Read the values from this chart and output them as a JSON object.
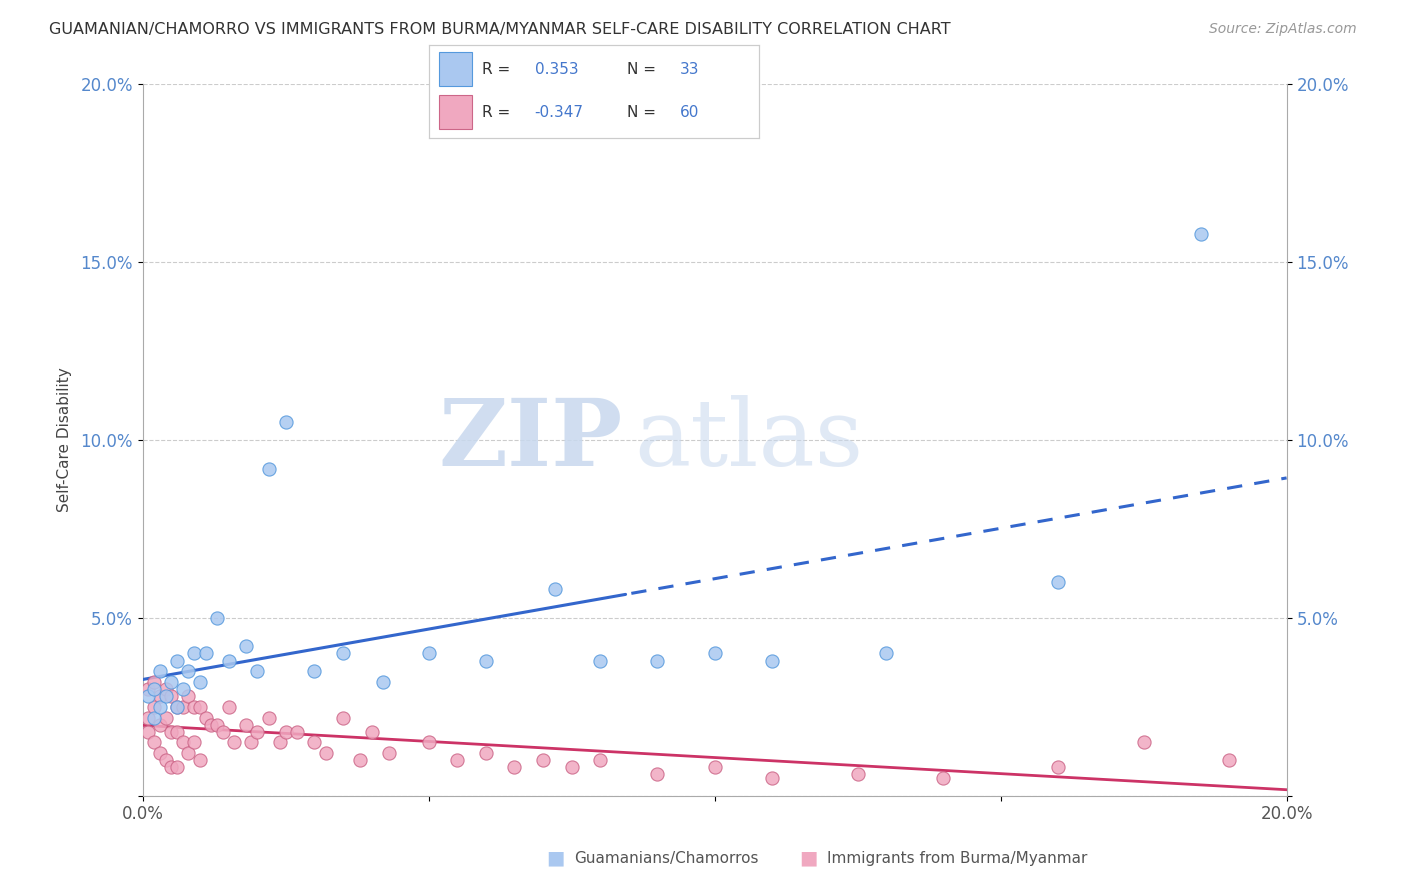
{
  "title": "GUAMANIAN/CHAMORRO VS IMMIGRANTS FROM BURMA/MYANMAR SELF-CARE DISABILITY CORRELATION CHART",
  "source": "Source: ZipAtlas.com",
  "ylabel": "Self-Care Disability",
  "xlim": [
    0.0,
    0.2
  ],
  "ylim": [
    0.0,
    0.2
  ],
  "x_ticks": [
    0.0,
    0.05,
    0.1,
    0.15,
    0.2
  ],
  "y_ticks": [
    0.0,
    0.05,
    0.1,
    0.15,
    0.2
  ],
  "series1": {
    "label": "Guamanians/Chamorros",
    "R": 0.353,
    "N": 33,
    "color": "#aac8f0",
    "edge_color": "#5599dd",
    "line_color": "#3366cc",
    "x": [
      0.001,
      0.002,
      0.002,
      0.003,
      0.003,
      0.004,
      0.005,
      0.006,
      0.006,
      0.007,
      0.008,
      0.009,
      0.01,
      0.011,
      0.013,
      0.015,
      0.018,
      0.02,
      0.022,
      0.025,
      0.03,
      0.035,
      0.042,
      0.05,
      0.06,
      0.072,
      0.08,
      0.09,
      0.1,
      0.11,
      0.13,
      0.16,
      0.185
    ],
    "y": [
      0.028,
      0.03,
      0.022,
      0.025,
      0.035,
      0.028,
      0.032,
      0.025,
      0.038,
      0.03,
      0.035,
      0.04,
      0.032,
      0.04,
      0.05,
      0.038,
      0.042,
      0.035,
      0.092,
      0.105,
      0.035,
      0.04,
      0.032,
      0.04,
      0.038,
      0.058,
      0.038,
      0.038,
      0.04,
      0.038,
      0.04,
      0.06,
      0.158
    ]
  },
  "series2": {
    "label": "Immigrants from Burma/Myanmar",
    "R": -0.347,
    "N": 60,
    "color": "#f0a8c0",
    "edge_color": "#cc6688",
    "line_color": "#cc3366",
    "x": [
      0.001,
      0.001,
      0.001,
      0.002,
      0.002,
      0.002,
      0.003,
      0.003,
      0.003,
      0.004,
      0.004,
      0.004,
      0.005,
      0.005,
      0.005,
      0.006,
      0.006,
      0.006,
      0.007,
      0.007,
      0.008,
      0.008,
      0.009,
      0.009,
      0.01,
      0.01,
      0.011,
      0.012,
      0.013,
      0.014,
      0.015,
      0.016,
      0.018,
      0.019,
      0.02,
      0.022,
      0.024,
      0.025,
      0.027,
      0.03,
      0.032,
      0.035,
      0.038,
      0.04,
      0.043,
      0.05,
      0.055,
      0.06,
      0.065,
      0.07,
      0.075,
      0.08,
      0.09,
      0.1,
      0.11,
      0.125,
      0.14,
      0.16,
      0.175,
      0.19
    ],
    "y": [
      0.03,
      0.022,
      0.018,
      0.032,
      0.025,
      0.015,
      0.028,
      0.02,
      0.012,
      0.03,
      0.022,
      0.01,
      0.028,
      0.018,
      0.008,
      0.025,
      0.018,
      0.008,
      0.025,
      0.015,
      0.028,
      0.012,
      0.025,
      0.015,
      0.025,
      0.01,
      0.022,
      0.02,
      0.02,
      0.018,
      0.025,
      0.015,
      0.02,
      0.015,
      0.018,
      0.022,
      0.015,
      0.018,
      0.018,
      0.015,
      0.012,
      0.022,
      0.01,
      0.018,
      0.012,
      0.015,
      0.01,
      0.012,
      0.008,
      0.01,
      0.008,
      0.01,
      0.006,
      0.008,
      0.005,
      0.006,
      0.005,
      0.008,
      0.015,
      0.01
    ]
  },
  "background_color": "#ffffff",
  "grid_color": "#cccccc"
}
